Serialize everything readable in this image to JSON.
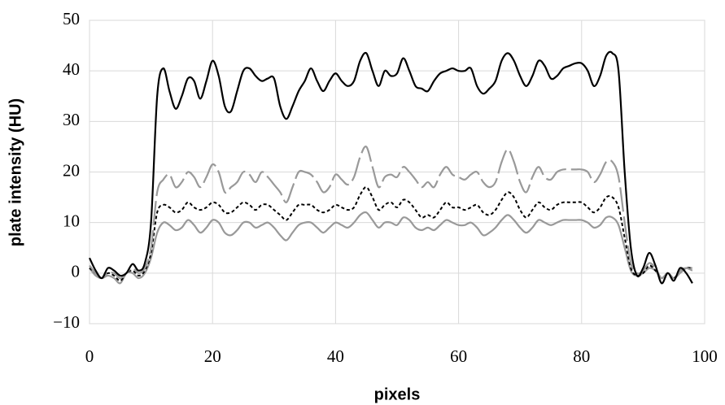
{
  "chart_data": {
    "type": "line",
    "x_label": "pixels",
    "y_label": "plate intensity (HU)",
    "x": [
      0,
      1,
      2,
      3,
      4,
      5,
      6,
      7,
      8,
      9,
      10,
      11,
      12,
      13,
      14,
      15,
      16,
      17,
      18,
      19,
      20,
      21,
      22,
      23,
      24,
      25,
      26,
      27,
      28,
      29,
      30,
      31,
      32,
      33,
      34,
      35,
      36,
      37,
      38,
      39,
      40,
      41,
      42,
      43,
      44,
      45,
      46,
      47,
      48,
      49,
      50,
      51,
      52,
      53,
      54,
      55,
      56,
      57,
      58,
      59,
      60,
      61,
      62,
      63,
      64,
      65,
      66,
      67,
      68,
      69,
      70,
      71,
      72,
      73,
      74,
      75,
      76,
      77,
      78,
      79,
      80,
      81,
      82,
      83,
      84,
      85,
      86,
      87,
      88,
      89,
      90,
      91,
      92,
      93,
      94,
      95,
      96,
      97,
      98
    ],
    "series": [
      {
        "color": "#000000",
        "style": "solid",
        "values": [
          3,
          0.5,
          -1,
          1,
          0.5,
          -0.5,
          0,
          1.8,
          0.5,
          2,
          10,
          35,
          40.5,
          36,
          32.5,
          35,
          38.5,
          38,
          34.5,
          38,
          42,
          39,
          33,
          32,
          36,
          40,
          40.5,
          39,
          38,
          38.5,
          38.5,
          33,
          30.5,
          33,
          36,
          38,
          40.5,
          38,
          36,
          38,
          39.5,
          38,
          37,
          38,
          42,
          43.5,
          40,
          37,
          40,
          39,
          39.5,
          42.5,
          40,
          37,
          36.5,
          36,
          38,
          39.5,
          40,
          40.5,
          40,
          40,
          40.5,
          37,
          35.5,
          36.5,
          38,
          42,
          43.5,
          42,
          39,
          37,
          39,
          42,
          41,
          38.5,
          39,
          40.5,
          41,
          41.5,
          41.5,
          40,
          37,
          39,
          43,
          43.5,
          40,
          20,
          5,
          -0.5,
          1,
          4,
          1.5,
          -2,
          0,
          -1.5,
          1,
          0,
          -2
        ]
      },
      {
        "color": "#999999",
        "style": "dashed",
        "values": [
          1.5,
          0,
          -1,
          0,
          0,
          -1,
          0,
          1,
          0,
          1,
          5,
          16,
          18.5,
          19.5,
          17,
          18,
          20,
          19,
          17,
          19,
          21.5,
          20,
          16,
          17,
          18,
          20,
          19.5,
          18,
          20,
          19,
          17.5,
          16,
          14,
          17,
          20,
          20,
          19.5,
          18,
          16,
          17,
          19.5,
          18.5,
          17.5,
          19,
          23,
          25,
          21,
          17,
          19,
          19.5,
          19,
          21,
          20,
          18.5,
          17,
          18,
          17,
          19.5,
          21,
          19.5,
          19,
          18.5,
          19.5,
          20,
          18,
          17,
          18,
          22,
          24.5,
          22,
          18,
          16,
          19,
          21,
          19,
          18.5,
          20,
          20.5,
          20.5,
          20.5,
          20.5,
          20,
          18,
          19.5,
          22,
          22,
          19,
          10,
          2,
          0,
          0.5,
          2,
          1,
          -1,
          0,
          -1,
          0.5,
          1,
          0.5
        ]
      },
      {
        "color": "#000000",
        "style": "dotted",
        "values": [
          1,
          0,
          -1,
          0,
          -0.5,
          -1.5,
          0,
          0.5,
          -0.5,
          0.5,
          4,
          12,
          13.5,
          13,
          12,
          12.5,
          14,
          13,
          12.5,
          13,
          14,
          13.5,
          12,
          12,
          13,
          14,
          13.5,
          12.5,
          13.5,
          13.5,
          12.5,
          11.5,
          10.5,
          12,
          13.5,
          13.5,
          13.5,
          12.5,
          12,
          12.5,
          13.5,
          13,
          12.5,
          13,
          15.5,
          17,
          15,
          12.5,
          13.5,
          14,
          13,
          14.5,
          14,
          12.5,
          11,
          11.5,
          11,
          12.5,
          14,
          13,
          13,
          12.5,
          13,
          13.5,
          12,
          11.5,
          12.5,
          14.5,
          16,
          15,
          12.5,
          11,
          12.5,
          14,
          13,
          12.5,
          13.5,
          14,
          14,
          14,
          14,
          13,
          12,
          13,
          15,
          15,
          13,
          7,
          1,
          -0.5,
          0,
          1.5,
          0.5,
          -1,
          0,
          -1,
          0.5,
          1,
          1
        ]
      },
      {
        "color": "#999999",
        "style": "solid",
        "values": [
          1,
          -0.5,
          -1,
          -0.5,
          -1,
          -2,
          0,
          0,
          -1,
          0,
          3,
          8,
          10,
          9.5,
          8.5,
          9,
          10.5,
          9.5,
          8,
          9,
          10.5,
          10,
          8,
          7.5,
          8.5,
          10,
          10,
          9,
          9.5,
          10,
          9,
          7.5,
          6.5,
          8,
          9.5,
          10,
          10,
          9,
          8,
          9,
          10,
          9.5,
          9,
          10,
          11.5,
          12,
          10.5,
          9,
          10,
          10,
          9.5,
          11,
          10.5,
          9,
          8.5,
          9,
          8.5,
          9.5,
          10.5,
          10,
          9.5,
          9.5,
          10,
          9,
          7.5,
          8,
          9,
          10.5,
          11.5,
          10.5,
          9,
          8,
          9,
          10.5,
          10,
          9.5,
          10,
          10.5,
          10.5,
          10.5,
          10.5,
          10,
          9,
          9.5,
          11,
          11,
          9.5,
          5,
          0.5,
          -0.5,
          0,
          1,
          0.5,
          -1,
          0,
          -1,
          0,
          1,
          1
        ]
      }
    ],
    "xlim": [
      0,
      100
    ],
    "xticks": [
      0,
      20,
      40,
      60,
      80,
      100
    ],
    "ylim": [
      -10,
      50
    ],
    "yticks": [
      -10,
      0,
      10,
      20,
      30,
      40,
      50
    ],
    "ytick_labels": [
      {
        "value": -10,
        "label": "−10"
      }
    ],
    "grid": true
  }
}
